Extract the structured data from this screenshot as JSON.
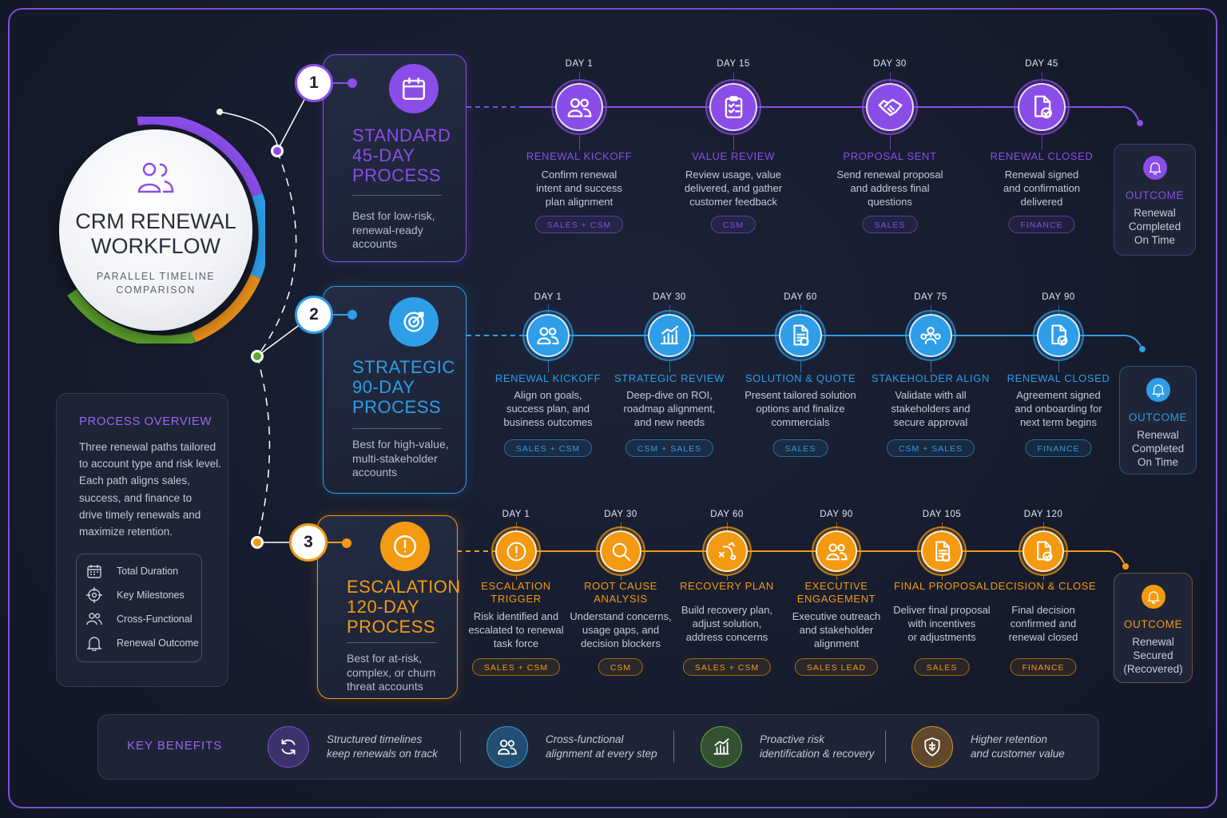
{
  "hero": {
    "title_line1": "CRM RENEWAL",
    "title_line2": "WORKFLOW",
    "subtitle_line1": "PARALLEL TIMELINE",
    "subtitle_line2": "COMPARISON"
  },
  "processes": [
    {
      "number": "1",
      "color": "#8b4de8",
      "title": [
        "STANDARD",
        "45-DAY",
        "PROCESS"
      ],
      "desc": [
        "Best for low-risk,",
        "renewal-ready",
        "accounts"
      ],
      "milestones": [
        {
          "day": "DAY 1",
          "title": [
            "RENEWAL KICKOFF"
          ],
          "desc": [
            "Confirm renewal",
            "intent and success",
            "plan alignment"
          ],
          "tag": "SALES + CSM",
          "icon": "users-icon"
        },
        {
          "day": "DAY 15",
          "title": [
            "VALUE REVIEW"
          ],
          "desc": [
            "Review usage, value",
            "delivered, and gather",
            "customer feedback"
          ],
          "tag": "CSM",
          "icon": "clipboard-icon"
        },
        {
          "day": "DAY 30",
          "title": [
            "PROPOSAL SENT"
          ],
          "desc": [
            "Send renewal proposal",
            "and address final",
            "questions"
          ],
          "tag": "SALES",
          "icon": "handshake-icon"
        },
        {
          "day": "DAY 45",
          "title": [
            "RENEWAL CLOSED"
          ],
          "desc": [
            "Renewal signed",
            "and confirmation",
            "delivered"
          ],
          "tag": "FINANCE",
          "icon": "document-check-icon"
        }
      ],
      "outcome": {
        "title": "OUTCOME",
        "text": [
          "Renewal",
          "Completed",
          "On Time"
        ]
      }
    },
    {
      "number": "2",
      "color": "#2f9ee8",
      "title": [
        "STRATEGIC",
        "90-DAY",
        "PROCESS"
      ],
      "desc": [
        "Best for high-value,",
        "multi-stakeholder",
        "accounts"
      ],
      "milestones": [
        {
          "day": "DAY 1",
          "title": [
            "RENEWAL KICKOFF"
          ],
          "desc": [
            "Align on goals,",
            "success plan, and",
            "business outcomes"
          ],
          "tag": "SALES + CSM",
          "icon": "users-icon"
        },
        {
          "day": "DAY 30",
          "title": [
            "STRATEGIC REVIEW"
          ],
          "desc": [
            "Deep-dive on ROI,",
            "roadmap alignment,",
            "and new needs"
          ],
          "tag": "CSM + SALES",
          "icon": "chart-icon"
        },
        {
          "day": "DAY 60",
          "title": [
            "SOLUTION & QUOTE"
          ],
          "desc": [
            "Present tailored solution",
            "options and finalize",
            "commercials"
          ],
          "tag": "SALES",
          "icon": "document-icon"
        },
        {
          "day": "DAY 75",
          "title": [
            "STAKEHOLDER ALIGN"
          ],
          "desc": [
            "Validate with all",
            "stakeholders and",
            "secure approval"
          ],
          "tag": "CSM + SALES",
          "icon": "stakeholders-icon"
        },
        {
          "day": "DAY 90",
          "title": [
            "RENEWAL CLOSED"
          ],
          "desc": [
            "Agreement signed",
            "and onboarding for",
            "next term begins"
          ],
          "tag": "FINANCE",
          "icon": "document-check-icon"
        }
      ],
      "outcome": {
        "title": "OUTCOME",
        "text": [
          "Renewal",
          "Completed",
          "On Time"
        ]
      }
    },
    {
      "number": "3",
      "color": "#f39a12",
      "title": [
        "ESCALATION",
        "120-DAY",
        "PROCESS"
      ],
      "desc": [
        "Best for at-risk,",
        "complex, or churn",
        "threat accounts"
      ],
      "milestones": [
        {
          "day": "DAY 1",
          "title": [
            "ESCALATION",
            "TRIGGER"
          ],
          "desc": [
            "Risk identified and",
            "escalated to renewal",
            "task force"
          ],
          "tag": "SALES + CSM",
          "icon": "alert-icon"
        },
        {
          "day": "DAY 30",
          "title": [
            "ROOT CAUSE",
            "ANALYSIS"
          ],
          "desc": [
            "Understand concerns,",
            "usage gaps, and",
            "decision blockers"
          ],
          "tag": "CSM",
          "icon": "search-icon"
        },
        {
          "day": "DAY 60",
          "title": [
            "RECOVERY PLAN"
          ],
          "desc": [
            "Build recovery plan,",
            "adjust solution,",
            "address concerns"
          ],
          "tag": "SALES + CSM",
          "icon": "strategy-icon"
        },
        {
          "day": "DAY 90",
          "title": [
            "EXECUTIVE",
            "ENGAGEMENT"
          ],
          "desc": [
            "Executive outreach",
            "and stakeholder",
            "alignment"
          ],
          "tag": "SALES LEAD",
          "icon": "users-icon"
        },
        {
          "day": "DAY 105",
          "title": [
            "FINAL PROPOSAL"
          ],
          "desc": [
            "Deliver final proposal",
            "with incentives",
            "or adjustments"
          ],
          "tag": "SALES",
          "icon": "document-icon"
        },
        {
          "day": "DAY 120",
          "title": [
            "DECISION & CLOSE"
          ],
          "desc": [
            "Final decision",
            "confirmed and",
            "renewal closed"
          ],
          "tag": "FINANCE",
          "icon": "document-check-icon"
        }
      ],
      "outcome": {
        "title": "OUTCOME",
        "text": [
          "Renewal",
          "Secured",
          "(Recovered)"
        ]
      }
    }
  ],
  "overview": {
    "title": "PROCESS OVERVIEW",
    "text": [
      "Three renewal paths tailored",
      "to account type and risk level.",
      "Each path aligns sales,",
      "success, and finance to",
      "drive timely renewals and",
      "maximize retention."
    ],
    "legend": [
      {
        "label": "Total Duration",
        "icon": "calendar-icon"
      },
      {
        "label": "Key Milestones",
        "icon": "target-icon"
      },
      {
        "label": "Cross-Functional",
        "icon": "users-icon"
      },
      {
        "label": "Renewal Outcome",
        "icon": "bell-icon"
      }
    ]
  },
  "benefits": {
    "label": "KEY BENEFITS",
    "items": [
      {
        "text": [
          "Structured timelines",
          "keep renewals on track"
        ],
        "color": "#7a4fd6",
        "icon": "refresh-icon"
      },
      {
        "text": [
          "Cross-functional",
          "alignment at every step"
        ],
        "color": "#2f9ee8",
        "icon": "users-icon"
      },
      {
        "text": [
          "Proactive risk",
          "identification & recovery"
        ],
        "color": "#5fa82e",
        "icon": "chart-icon"
      },
      {
        "text": [
          "Higher retention",
          "and customer value"
        ],
        "color": "#e8901a",
        "icon": "shield-icon"
      }
    ]
  }
}
